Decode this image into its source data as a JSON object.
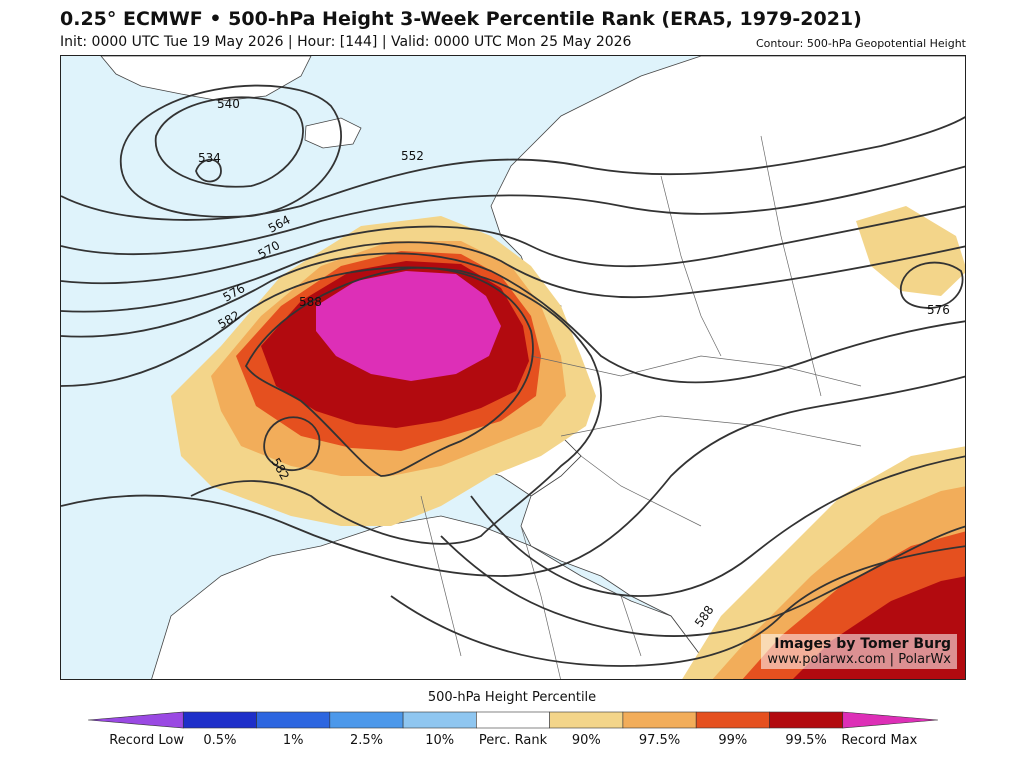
{
  "header": {
    "title": "0.25° ECMWF • 500-hPa Height 3-Week Percentile Rank (ERA5, 1979-2021)",
    "subtitle": "Init: 0000 UTC Tue 19 May 2026 | Hour: [144] | Valid: 0000 UTC Mon 25 May 2026",
    "contour_note": "Contour: 500-hPa Geopotential Height"
  },
  "map": {
    "contour_labels": [
      "540",
      "534",
      "552",
      "564",
      "570",
      "576",
      "582",
      "588",
      "582",
      "588",
      "576"
    ],
    "colors": {
      "ocean": "#dff3fb",
      "land": "#ffffff",
      "p90": "#f3d58a",
      "p97_5": "#f2ad5a",
      "p99": "#e5501f",
      "p99_5": "#b20a0f",
      "record_max": "#dd2fb7"
    }
  },
  "credit": {
    "line1": "Images by Tomer Burg",
    "line2": "www.polarwx.com | PolarWx"
  },
  "legend": {
    "title": "500-hPa Height Percentile",
    "labels": [
      "Record Low",
      "0.5%",
      "1%",
      "2.5%",
      "10%",
      "Perc. Rank",
      "90%",
      "97.5%",
      "99%",
      "99.5%",
      "Record Max"
    ],
    "colors": [
      "#9a49e3",
      "#1e2fc9",
      "#2d66e0",
      "#4c98ea",
      "#8fc6f0",
      "#ffffff",
      "#f3d58a",
      "#f2ad5a",
      "#e5501f",
      "#b20a0f",
      "#dd2fb7"
    ]
  }
}
